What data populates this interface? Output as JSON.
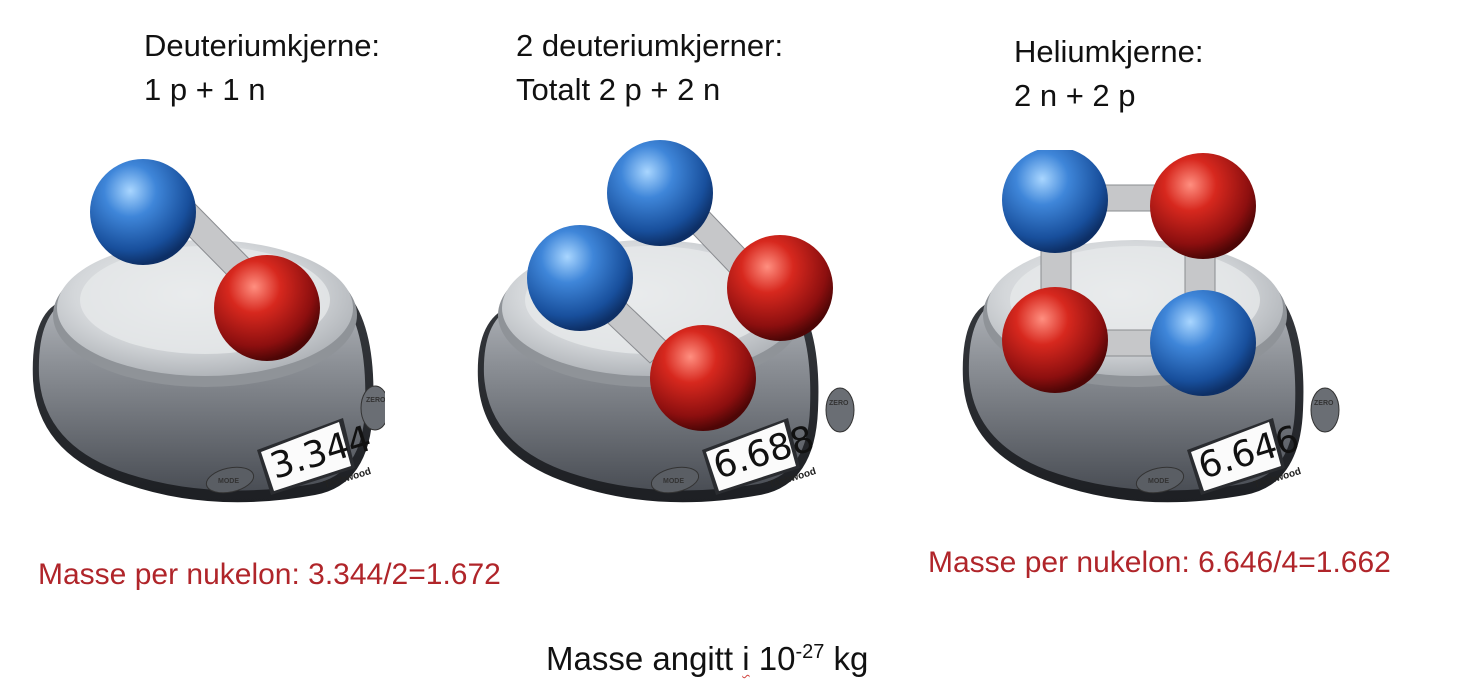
{
  "panels": [
    {
      "heading_line1": "Deuteriumkjerne:",
      "heading_line2": "1 p + 1 n",
      "display_value": "3.344",
      "nucleons": "proton-neutron pair"
    },
    {
      "heading_line1": "2 deuteriumkjerner:",
      "heading_line2": "Totalt 2 p + 2 n",
      "display_value": "6.688",
      "nucleons": "two proton-neutron pairs"
    },
    {
      "heading_line1": "Heliumkjerne:",
      "heading_line2": "2 n + 2 p",
      "display_value": "6.646",
      "nucleons": "2x2 bonded square"
    }
  ],
  "scale": {
    "brand": "Techwood",
    "mode_label": "MODE",
    "zero_label": "ZERO"
  },
  "notes": {
    "left": "Masse per nukelon: 3.344/2=1.672",
    "right": "Masse per nukelon: 6.646/4=1.662"
  },
  "footer": {
    "prefix": "Masse angitt ",
    "underlined_word": "i",
    "base": " 10",
    "exponent": "-27",
    "unit": " kg"
  },
  "colors": {
    "proton": "#1f5fb8",
    "neutron": "#b51a1a",
    "note_text": "#b0252a"
  }
}
